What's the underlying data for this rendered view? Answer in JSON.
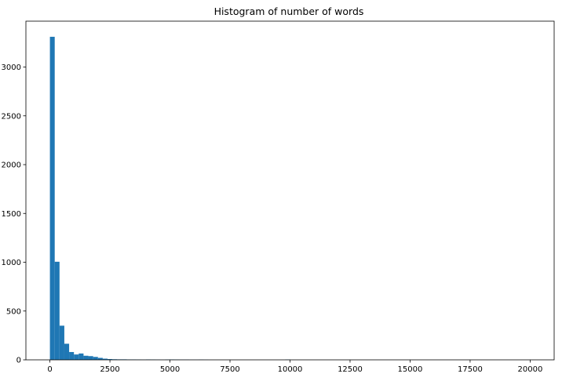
{
  "chart_data": {
    "type": "bar",
    "title": "Histogram of number of words",
    "xlabel": "",
    "ylabel": "",
    "xlim": [
      -1000,
      21000
    ],
    "ylim": [
      0,
      3470
    ],
    "grid": false,
    "bar_color": "#1f77b4",
    "bin_width": 200,
    "bin_starts": [
      0,
      200,
      400,
      600,
      800,
      1000,
      1200,
      1400,
      1600,
      1800,
      2000,
      2200,
      2400,
      2600,
      2800,
      3000,
      3200,
      3400,
      3600,
      3800,
      4000,
      4200,
      4400,
      4600,
      4800,
      5000,
      5200,
      5400,
      5600,
      5800,
      6000,
      6200,
      6400,
      9800
    ],
    "values": [
      3310,
      1005,
      350,
      165,
      80,
      55,
      65,
      42,
      38,
      30,
      20,
      12,
      8,
      6,
      5,
      5,
      4,
      4,
      3,
      2,
      4,
      3,
      2,
      1,
      3,
      4,
      3,
      2,
      2,
      1,
      1,
      2,
      1,
      3
    ],
    "x_ticks": [
      0,
      2500,
      5000,
      7500,
      10000,
      12500,
      15000,
      17500,
      20000
    ],
    "x_tick_labels": [
      "0",
      "2500",
      "5000",
      "7500",
      "10000",
      "12500",
      "15000",
      "17500",
      "20000"
    ],
    "y_ticks": [
      0,
      500,
      1000,
      1500,
      2000,
      2500,
      3000
    ],
    "y_tick_labels": [
      "0",
      "500",
      "1000",
      "1500",
      "2000",
      "2500",
      "3000"
    ]
  }
}
